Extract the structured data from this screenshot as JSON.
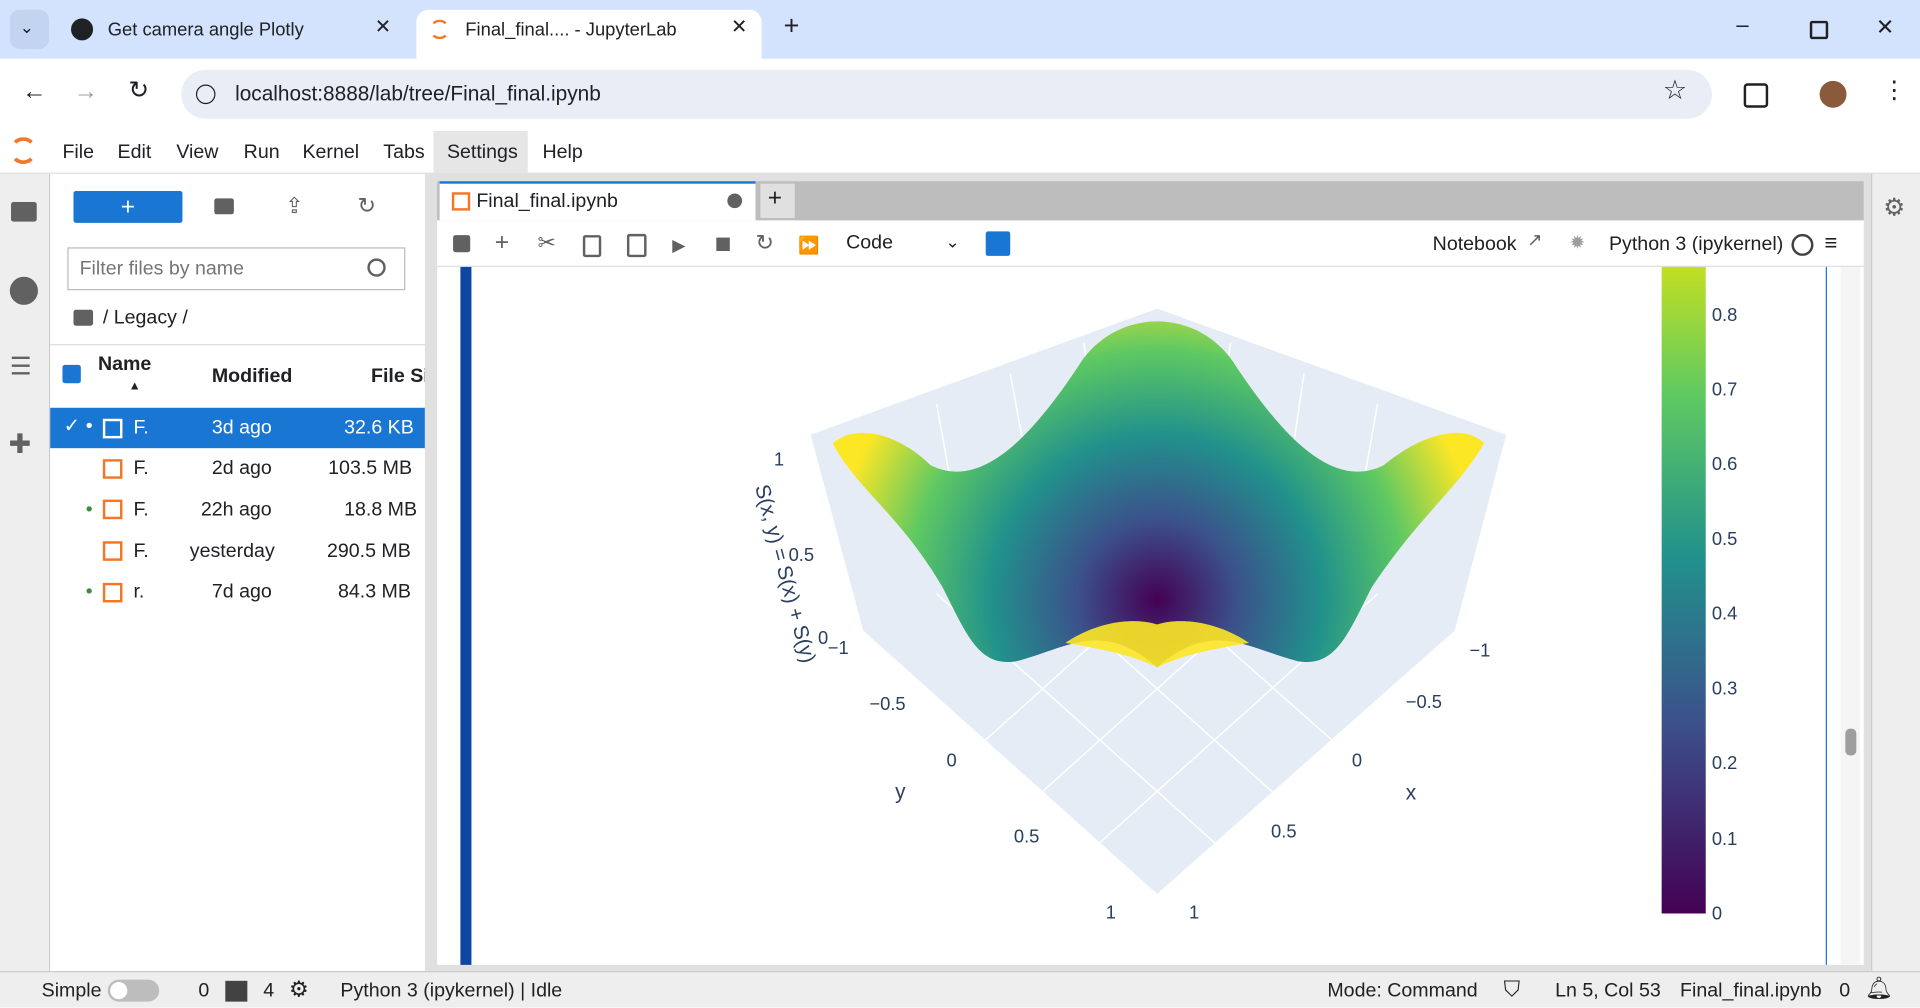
{
  "browser": {
    "tabs": [
      "Get camera angle Plotly",
      "Final_final.... - JupyterLab"
    ],
    "url": "localhost:8888/lab/tree/Final_final.ipynb"
  },
  "menu": [
    "File",
    "Edit",
    "View",
    "Run",
    "Kernel",
    "Tabs",
    "Settings",
    "Help"
  ],
  "file_browser": {
    "filter_placeholder": "Filter files by name",
    "path": "/ Legacy /",
    "columns": [
      "Name",
      "Modified",
      "File Si"
    ],
    "rows": [
      [
        "F.",
        "3d ago",
        "32.6 KB"
      ],
      [
        "F.",
        "2d ago",
        "103.5 MB"
      ],
      [
        "F.",
        "22h ago",
        "18.8 MB"
      ],
      [
        "F.",
        "yesterday",
        "290.5 MB"
      ],
      [
        "r.",
        "7d ago",
        "84.3 MB"
      ]
    ]
  },
  "notebook": {
    "tab": "Final_final.ipynb",
    "cell_type": "Code",
    "label": "Notebook",
    "kernel": "Python 3 (ipykernel)"
  },
  "plot": {
    "z_title": "S(x, y) = S(x) + S(y)",
    "x_title": "x",
    "y_title": "y",
    "z_ticks": [
      "1",
      "0.5",
      "0"
    ],
    "y_ticks": [
      "−1",
      "−0.5",
      "0",
      "0.5",
      "1"
    ],
    "x_ticks": [
      "−1",
      "−0.5",
      "0",
      "0.5",
      "1"
    ],
    "colorbar_ticks": [
      "0.8",
      "0.7",
      "0.6",
      "0.5",
      "0.4",
      "0.3",
      "0.2",
      "0.1",
      "0"
    ]
  },
  "status": {
    "mode_toggle": "Simple",
    "terminals": "0",
    "kernels": "4",
    "kernel_state": "Python 3 (ipykernel) | Idle",
    "mode": "Mode: Command",
    "cursor": "Ln 5, Col 53",
    "file": "Final_final.ipynb",
    "notifications": "0"
  }
}
